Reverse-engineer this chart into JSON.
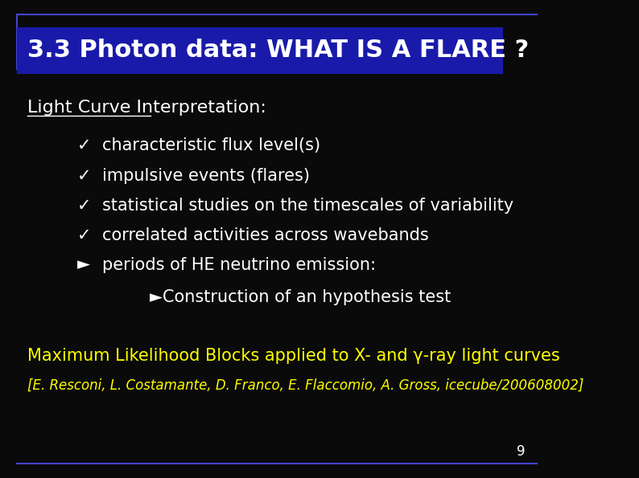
{
  "background_color": "#0a0a0a",
  "title_text": "3.3 Photon data: WHAT IS A FLARE ?",
  "title_bg_color": "#1a1aaa",
  "title_text_color": "#ffffff",
  "title_fontsize": 22,
  "border_color": "#4444cc",
  "subtitle_text": "Light Curve Interpretation:",
  "subtitle_color": "#ffffff",
  "subtitle_fontsize": 16,
  "bullet_check_color": "#ffffff",
  "bullet_check_items": [
    "characteristic flux level(s)",
    "impulsive events (flares)",
    "statistical studies on the timescales of variability",
    "correlated activities across wavebands"
  ],
  "bullet_arrow_items": [
    "periods of HE neutrino emission:"
  ],
  "sub_bullet_items": [
    "►Construction of an hypothesis test"
  ],
  "bullet_fontsize": 15,
  "ml_text": "Maximum Likelihood Blocks applied to X- and γ-ray light curves",
  "ml_color": "#ffff00",
  "ml_fontsize": 15,
  "ref_text": "[E. Resconi, L. Costamante, D. Franco, E. Flaccomio, A. Gross, icecube/200608002]",
  "ref_color": "#ffff00",
  "ref_fontsize": 12,
  "page_number": "9",
  "page_color": "#ffffff",
  "page_fontsize": 12
}
